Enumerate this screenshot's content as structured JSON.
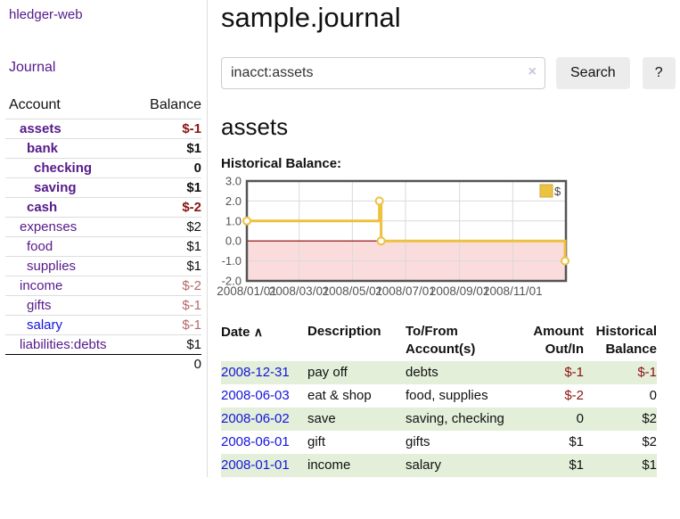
{
  "app": {
    "brand": "hledger-web",
    "nav_journal": "Journal"
  },
  "colors": {
    "purple": "#551a8b",
    "blue": "#1414dd",
    "neg_strong": "#8b1313",
    "neg_weak": "#b56a6a",
    "row_green": "#e3efd9",
    "btn_bg": "#ececec",
    "clearx": "#c9c4dd"
  },
  "sidebar": {
    "header": {
      "account": "Account",
      "balance": "Balance"
    },
    "accounts": [
      {
        "name": "assets",
        "balance": "$-1",
        "indent": 1,
        "selected": true,
        "neg": "strong"
      },
      {
        "name": "bank",
        "balance": "$1",
        "indent": 2,
        "selected": true
      },
      {
        "name": "checking",
        "balance": "0",
        "indent": 3,
        "selected": true
      },
      {
        "name": "saving",
        "balance": "$1",
        "indent": 3,
        "selected": true
      },
      {
        "name": "cash",
        "balance": "$-2",
        "indent": 2,
        "selected": true,
        "neg": "strong"
      },
      {
        "name": "expenses",
        "balance": "$2",
        "indent": 1
      },
      {
        "name": "food",
        "balance": "$1",
        "indent": 2
      },
      {
        "name": "supplies",
        "balance": "$1",
        "indent": 2
      },
      {
        "name": "income",
        "balance": "$-2",
        "indent": 1,
        "neg": "weak"
      },
      {
        "name": "gifts",
        "balance": "$-1",
        "indent": 2,
        "neg": "weak"
      },
      {
        "name": "salary",
        "balance": "$-1",
        "indent": 2,
        "neg": "weak",
        "unvisited": true
      },
      {
        "name": "liabilities:debts",
        "balance": "$1",
        "indent": 1
      }
    ],
    "total": "0"
  },
  "main": {
    "title": "sample.journal",
    "search": {
      "value": "inacct:assets",
      "clear_icon": "×",
      "button": "Search",
      "help": "?"
    },
    "account_heading": "assets",
    "chart_heading": "Historical Balance:"
  },
  "chart_data": {
    "type": "line",
    "step": true,
    "title": "Historical Balance",
    "series": [
      {
        "name": "$",
        "color": "#edc240",
        "points": [
          [
            "2008-01-01",
            1
          ],
          [
            "2008-06-01",
            2
          ],
          [
            "2008-06-03",
            0
          ],
          [
            "2008-12-31",
            -1
          ]
        ]
      }
    ],
    "xlim": [
      "2008-01-01",
      "2009-01-01"
    ],
    "ylim": [
      -2,
      3
    ],
    "yticks": [
      {
        "value": 3,
        "label": "3.0"
      },
      {
        "value": 2,
        "label": "2.0"
      },
      {
        "value": 1,
        "label": "1.0"
      },
      {
        "value": 0,
        "label": "0.0"
      },
      {
        "value": -1,
        "label": "-1.0"
      },
      {
        "value": -2,
        "label": "-2.0"
      }
    ],
    "xticks": [
      {
        "date": "2008-01-01",
        "label": "2008/01/01"
      },
      {
        "date": "2008-03-01",
        "label": "2008/03/01"
      },
      {
        "date": "2008-05-01",
        "label": "2008/05/01"
      },
      {
        "date": "2008-07-01",
        "label": "2008/07/01"
      },
      {
        "date": "2008-09-01",
        "label": "2008/09/01"
      },
      {
        "date": "2008-11-01",
        "label": "2008/11/01"
      }
    ],
    "legend": {
      "label": "$",
      "position": "top-right"
    },
    "grid": true,
    "negative_region_fill": "#fbdcdc",
    "zero_line_color": "#8b0000",
    "plot_border_color": "#545454",
    "grid_color": "#d9d9d9",
    "tick_label_color": "#545454"
  },
  "register": {
    "columns": {
      "date": "Date",
      "sort_icon": "∧",
      "description": "Description",
      "accounts": "To/From Account(s)",
      "amount": "Amount Out/In",
      "balance": "Historical Balance"
    },
    "rows": [
      {
        "date": "2008-12-31",
        "description": "pay off",
        "accounts": "debts",
        "amount": "$-1",
        "amount_negative": true,
        "balance": "$-1",
        "balance_negative": true
      },
      {
        "date": "2008-06-03",
        "description": "eat & shop",
        "accounts": "food, supplies",
        "amount": "$-2",
        "amount_negative": true,
        "balance": "0",
        "balance_negative": false
      },
      {
        "date": "2008-06-02",
        "description": "save",
        "accounts": "saving, checking",
        "amount": "0",
        "amount_negative": false,
        "balance": "$2",
        "balance_negative": false
      },
      {
        "date": "2008-06-01",
        "description": "gift",
        "accounts": "gifts",
        "amount": "$1",
        "amount_negative": false,
        "balance": "$2",
        "balance_negative": false
      },
      {
        "date": "2008-01-01",
        "description": "income",
        "accounts": "salary",
        "amount": "$1",
        "amount_negative": false,
        "balance": "$1",
        "balance_negative": false
      }
    ]
  }
}
